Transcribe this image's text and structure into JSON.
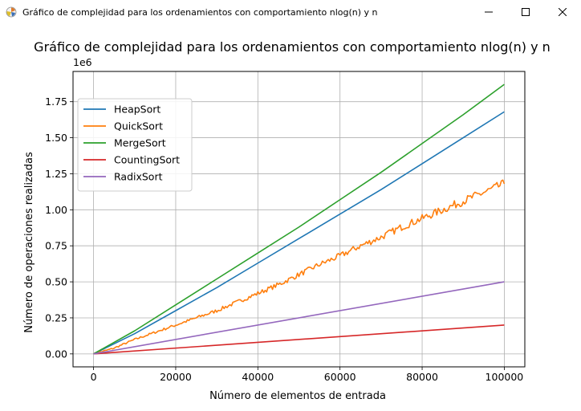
{
  "window": {
    "title": "Gráfico de complejidad para los ordenamientos con comportamiento nlog(n) y n",
    "icon": "matplotlib-icon",
    "controls": [
      "minimize-icon",
      "maximize-icon",
      "close-icon"
    ]
  },
  "chart_data": {
    "type": "line",
    "title": "Gráfico de complejidad para los ordenamientos con comportamiento nlog(n) y n",
    "xlabel": "Número de elementos de entrada",
    "ylabel": "Número de operaciones realizadas",
    "y_offset_label": "1e6",
    "xlim": [
      -5000,
      105000
    ],
    "ylim": [
      -0.09,
      1.96
    ],
    "y_scale_factor": 1000000,
    "xticks": [
      0,
      20000,
      40000,
      60000,
      80000,
      100000
    ],
    "xtick_labels": [
      "0",
      "20000",
      "40000",
      "60000",
      "80000",
      "100000"
    ],
    "yticks": [
      0,
      0.25,
      0.5,
      0.75,
      1.0,
      1.25,
      1.5,
      1.75
    ],
    "ytick_labels": [
      "0.00",
      "0.25",
      "0.50",
      "0.75",
      "1.00",
      "1.25",
      "1.50",
      "1.75"
    ],
    "grid": true,
    "legend_position": "top-left",
    "series": [
      {
        "name": "HeapSort",
        "color": "#1f77b4",
        "x": [
          0,
          10000,
          20000,
          30000,
          40000,
          50000,
          60000,
          70000,
          80000,
          90000,
          100000
        ],
        "y": [
          0,
          0.14,
          0.3,
          0.46,
          0.63,
          0.8,
          0.97,
          1.14,
          1.32,
          1.5,
          1.68
        ]
      },
      {
        "name": "QuickSort",
        "color": "#ff7f0e",
        "x": [
          0,
          5000,
          10000,
          15000,
          20000,
          25000,
          30000,
          35000,
          40000,
          45000,
          50000,
          55000,
          60000,
          65000,
          70000,
          75000,
          80000,
          85000,
          90000,
          95000,
          100000
        ],
        "y": [
          0,
          0.04,
          0.1,
          0.15,
          0.2,
          0.25,
          0.3,
          0.36,
          0.42,
          0.48,
          0.55,
          0.62,
          0.68,
          0.75,
          0.81,
          0.88,
          0.94,
          1.0,
          1.06,
          1.12,
          1.18
        ]
      },
      {
        "name": "MergeSort",
        "color": "#2ca02c",
        "x": [
          0,
          10000,
          20000,
          30000,
          40000,
          50000,
          60000,
          70000,
          80000,
          90000,
          100000
        ],
        "y": [
          0,
          0.16,
          0.34,
          0.52,
          0.7,
          0.88,
          1.07,
          1.26,
          1.46,
          1.66,
          1.87
        ]
      },
      {
        "name": "CountingSort",
        "color": "#d62728",
        "x": [
          0,
          100000
        ],
        "y": [
          0,
          0.2
        ]
      },
      {
        "name": "RadixSort",
        "color": "#9467bd",
        "x": [
          0,
          100000
        ],
        "y": [
          0,
          0.5
        ]
      }
    ]
  }
}
